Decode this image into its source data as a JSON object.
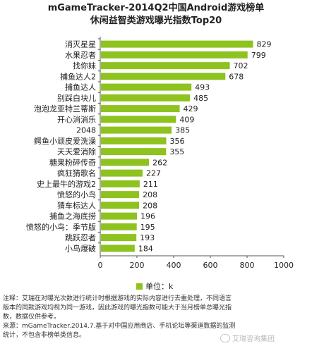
{
  "title_line1": "mGameTracker-2014Q2中国Android游戏榜单",
  "title_line2": "休闲益智类游戏曝光指数Top20",
  "legend_label": "单位：k",
  "notes": {
    "line1": "注释：艾瑞在对曝光次数进行统计时根据游戏的实际内容进行去重处理，不同语言",
    "line2": "版本的同款游戏均视为同一游戏，因此游戏的曝光指数可能大于当月榜单总曝光指",
    "line3": "数，数据仅供参考。",
    "line4": "来源：mGameTracker.2014.7.基于对中国应用商店、手机论坛等渠道数据的监测",
    "line5": "统计，不包含非榜单类信息。"
  },
  "watermark": "艾瑞咨询集团",
  "chart_data": {
    "type": "bar",
    "orientation": "horizontal",
    "title": "mGameTracker-2014Q2中国Android游戏榜单 休闲益智类游戏曝光指数Top20",
    "categories": [
      "消灭星星",
      "水果忍者",
      "找你妹",
      "捕鱼达人2",
      "捕鱼达人",
      "别踩白块儿",
      "泡泡龙亚特兰蒂斯",
      "开心消消乐",
      "2048",
      "鳄鱼小顽皮爱洗澡",
      "天天爱消除",
      "糖果粉碎传奇",
      "疯狂猜歌名",
      "史上最牛的游戏2",
      "愤怒的小鸟",
      "猜车标达人",
      "捕鱼之海底捞",
      "愤怒的小鸟：季节版",
      "跳跃忍者",
      "小鸟爆破"
    ],
    "values": [
      829,
      799,
      702,
      678,
      493,
      485,
      429,
      409,
      385,
      356,
      355,
      262,
      227,
      211,
      208,
      208,
      196,
      195,
      193,
      184
    ],
    "xlim": [
      0,
      1000
    ],
    "x_ticks": [
      0,
      200,
      400,
      600,
      800,
      1000
    ],
    "unit": "k",
    "legend": "单位：k",
    "legend_position": "bottom",
    "bar_color": "#8dc21f",
    "grid": false
  }
}
